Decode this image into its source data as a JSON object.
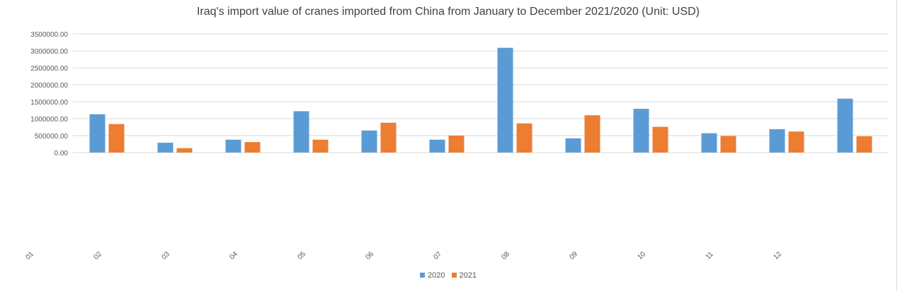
{
  "chart_data": {
    "type": "bar",
    "title": "Iraq's import value of cranes imported from China from January to December 2021/2020 (Unit: USD)",
    "categories": [
      "01",
      "02",
      "03",
      "04",
      "05",
      "06",
      "07",
      "08",
      "09",
      "10",
      "11",
      "12"
    ],
    "series": [
      {
        "name": "2020",
        "color": "#5b9bd5",
        "values": [
          1130000,
          290000,
          380000,
          1220000,
          650000,
          380000,
          3090000,
          420000,
          1290000,
          570000,
          690000,
          1590000
        ]
      },
      {
        "name": "2021",
        "color": "#ed7d31",
        "values": [
          840000,
          130000,
          310000,
          380000,
          880000,
          500000,
          860000,
          1100000,
          760000,
          490000,
          620000,
          480000
        ]
      }
    ],
    "y_ticks": [
      "0.00",
      "500000.00",
      "1000000.00",
      "1500000.00",
      "2000000.00",
      "2500000.00",
      "3000000.00",
      "3500000.00"
    ],
    "ylim": [
      0,
      3500000
    ],
    "grid": true,
    "legend_position": "bottom",
    "xlabel": "",
    "ylabel": ""
  }
}
